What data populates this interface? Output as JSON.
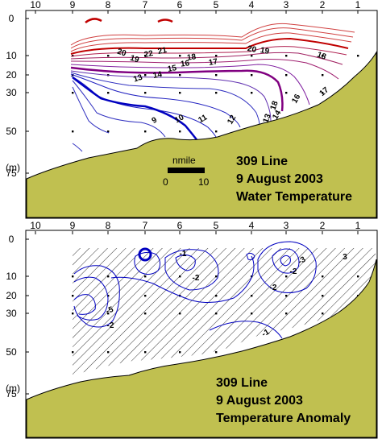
{
  "chart_data": [
    {
      "type": "contour",
      "caption_lines": [
        "309 Line",
        "9 August 2003",
        "Water Temperature"
      ],
      "stations": [
        "10",
        "9",
        "8",
        "7",
        "6",
        "5",
        "4",
        "3",
        "2",
        "1"
      ],
      "depth_ticks": [
        "0",
        "10",
        "20",
        "30",
        "50",
        "75"
      ],
      "depth_unit": "(m)",
      "scale_bar": {
        "label": "nmile",
        "start": "0",
        "end": "10"
      },
      "contour_labels": [
        "21",
        "22",
        "20",
        "19",
        "18",
        "17",
        "16",
        "15",
        "14",
        "13",
        "20",
        "19",
        "18",
        "17",
        "16",
        "14",
        "13",
        "12",
        "11",
        "10",
        "9",
        "18"
      ],
      "colors": {
        "seabed": "#c0c050",
        "warm": "#c00000",
        "cool": "#0000c0",
        "mid": "#800080"
      }
    },
    {
      "type": "contour",
      "caption_lines": [
        "309 Line",
        "9 August 2003",
        "Temperature Anomaly"
      ],
      "stations": [
        "10",
        "9",
        "8",
        "7",
        "6",
        "5",
        "4",
        "3",
        "2",
        "1"
      ],
      "depth_ticks": [
        "0",
        "10",
        "20",
        "30",
        "50",
        "75"
      ],
      "depth_unit": "(m)",
      "contour_labels": [
        "-5",
        "-2",
        "-1",
        "-2",
        "-2",
        "-1",
        "-3",
        "-2",
        "3"
      ],
      "colors": {
        "seabed": "#c0c050",
        "contour": "#0000c0",
        "hatch": "#000000"
      }
    }
  ]
}
